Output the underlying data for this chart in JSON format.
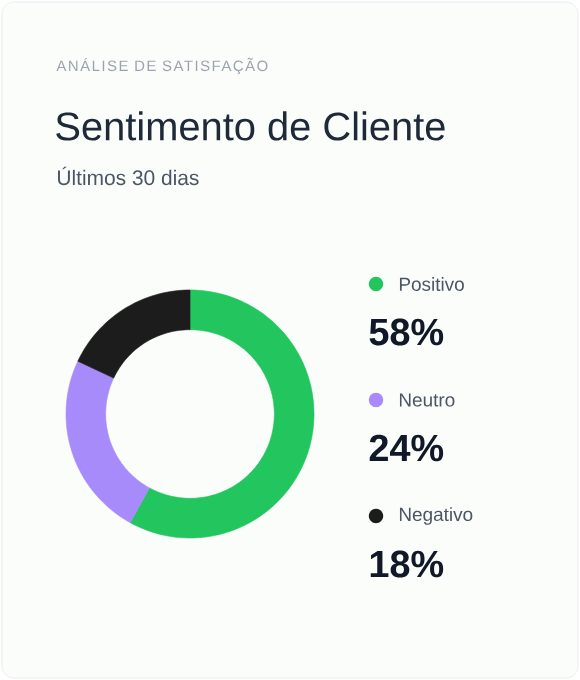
{
  "chart_data": {
    "type": "donut",
    "title": "Sentimento de Cliente",
    "subtitle": "Últimos 30 dias",
    "annotations": [
      "ANÁLISE DE SATISFAÇÃO"
    ],
    "categories": [
      "Positivo",
      "Neutro",
      "Negativo"
    ],
    "values": [
      58,
      24,
      18
    ],
    "value_labels": [
      "58%",
      "24%",
      "18%"
    ],
    "colors": [
      "#22c55e",
      "#a78bfa",
      "#1c1c1c"
    ],
    "legend": "right"
  }
}
